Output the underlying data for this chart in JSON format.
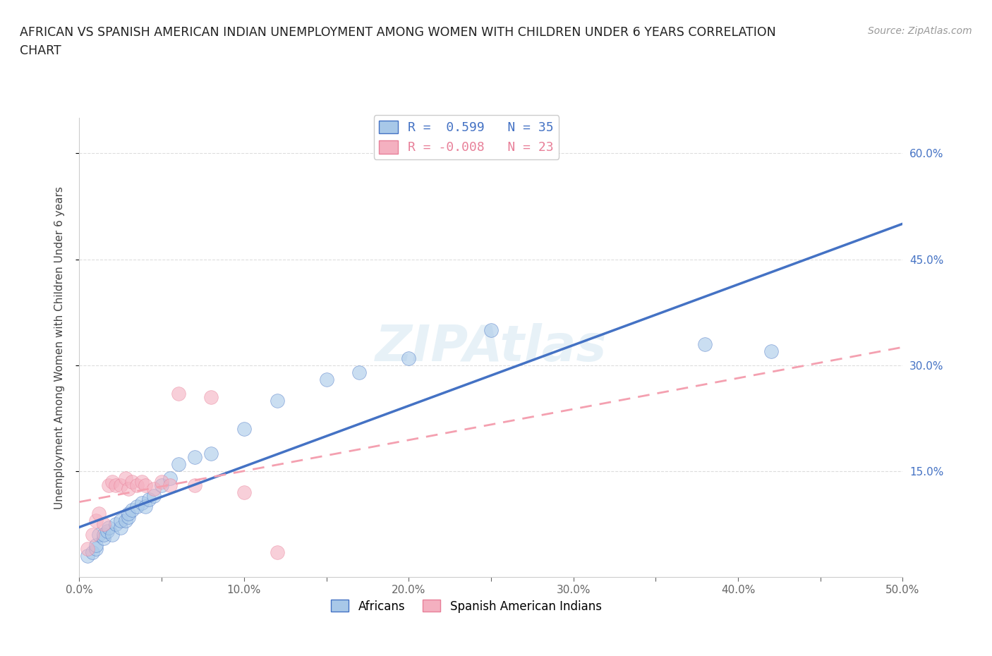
{
  "title_line1": "AFRICAN VS SPANISH AMERICAN INDIAN UNEMPLOYMENT AMONG WOMEN WITH CHILDREN UNDER 6 YEARS CORRELATION",
  "title_line2": "CHART",
  "source_text": "Source: ZipAtlas.com",
  "ylabel": "Unemployment Among Women with Children Under 6 years",
  "xlim": [
    0.0,
    0.5
  ],
  "ylim": [
    0.0,
    0.65
  ],
  "xtick_labels": [
    "0.0%",
    "",
    "10.0%",
    "",
    "20.0%",
    "",
    "30.0%",
    "",
    "40.0%",
    "",
    "50.0%"
  ],
  "xtick_values": [
    0.0,
    0.05,
    0.1,
    0.15,
    0.2,
    0.25,
    0.3,
    0.35,
    0.4,
    0.45,
    0.5
  ],
  "ytick_labels": [
    "15.0%",
    "30.0%",
    "45.0%",
    "60.0%"
  ],
  "ytick_values": [
    0.15,
    0.3,
    0.45,
    0.6
  ],
  "african_color": "#a8c8e8",
  "spanish_color": "#f4b0c0",
  "trendline_african_color": "#4472c4",
  "trendline_spanish_color": "#f4a0b0",
  "trendline_spanish_dash": "#e88099",
  "legend_african_R": "0.599",
  "legend_african_N": "35",
  "legend_spanish_R": "-0.008",
  "legend_spanish_N": "23",
  "legend_african_label": "Africans",
  "legend_spanish_label": "Spanish American Indians",
  "watermark_text": "ZIPAtlas",
  "background_color": "#ffffff",
  "grid_color": "#dddddd",
  "african_x": [
    0.005,
    0.008,
    0.01,
    0.01,
    0.012,
    0.015,
    0.015,
    0.017,
    0.018,
    0.02,
    0.022,
    0.025,
    0.025,
    0.028,
    0.03,
    0.03,
    0.032,
    0.035,
    0.038,
    0.04,
    0.042,
    0.045,
    0.05,
    0.055,
    0.06,
    0.07,
    0.08,
    0.1,
    0.12,
    0.15,
    0.17,
    0.2,
    0.25,
    0.38,
    0.42
  ],
  "african_y": [
    0.03,
    0.035,
    0.04,
    0.045,
    0.06,
    0.055,
    0.06,
    0.065,
    0.07,
    0.06,
    0.075,
    0.07,
    0.08,
    0.08,
    0.085,
    0.09,
    0.095,
    0.1,
    0.105,
    0.1,
    0.11,
    0.115,
    0.13,
    0.14,
    0.16,
    0.17,
    0.175,
    0.21,
    0.25,
    0.28,
    0.29,
    0.31,
    0.35,
    0.33,
    0.32
  ],
  "spanish_x": [
    0.005,
    0.008,
    0.01,
    0.012,
    0.015,
    0.018,
    0.02,
    0.022,
    0.025,
    0.028,
    0.03,
    0.032,
    0.035,
    0.038,
    0.04,
    0.045,
    0.05,
    0.055,
    0.06,
    0.07,
    0.08,
    0.1,
    0.12
  ],
  "spanish_y": [
    0.04,
    0.06,
    0.08,
    0.09,
    0.075,
    0.13,
    0.135,
    0.13,
    0.13,
    0.14,
    0.125,
    0.135,
    0.13,
    0.135,
    0.13,
    0.125,
    0.135,
    0.13,
    0.26,
    0.13,
    0.255,
    0.12,
    0.035
  ]
}
